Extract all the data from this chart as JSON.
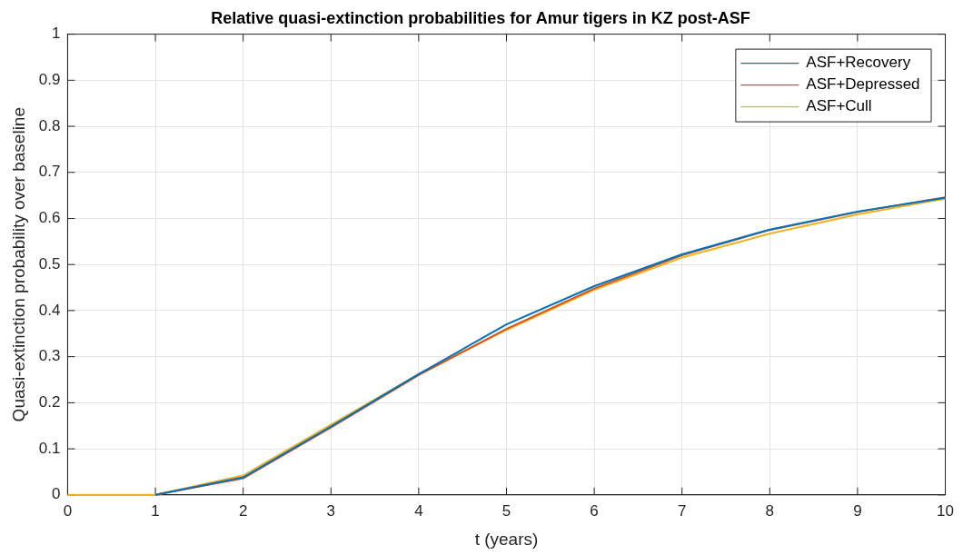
{
  "chart_data": {
    "type": "line",
    "title": "Relative quasi-extinction probabilities for Amur tigers in KZ post-ASF",
    "xlabel": "t (years)",
    "ylabel": "Quasi-extinction probability over baseline",
    "x": [
      0,
      1,
      2,
      3,
      4,
      5,
      6,
      7,
      8,
      9,
      10
    ],
    "series": [
      {
        "name": "ASF+Recovery",
        "color": "#0072bd",
        "values": [
          null,
          0,
          0.038,
          0.148,
          0.262,
          0.37,
          0.453,
          0.522,
          0.576,
          0.615,
          0.645
        ]
      },
      {
        "name": "ASF+Depressed",
        "color": "#d95319",
        "values": [
          null,
          0,
          0.036,
          0.146,
          0.26,
          0.36,
          0.448,
          0.52,
          0.575,
          0.614,
          0.646
        ]
      },
      {
        "name": "ASF+Cull",
        "color": "#edb120",
        "values": [
          0,
          0,
          0.042,
          0.152,
          0.262,
          0.358,
          0.445,
          0.515,
          0.567,
          0.609,
          0.643
        ]
      }
    ],
    "xlim": [
      0,
      10
    ],
    "xticks": [
      0,
      1,
      2,
      3,
      4,
      5,
      6,
      7,
      8,
      9,
      10
    ],
    "ylim": [
      0,
      1
    ],
    "yticks": [
      0,
      0.1,
      0.2,
      0.3,
      0.4,
      0.5,
      0.6,
      0.7,
      0.8,
      0.9,
      1
    ],
    "grid": true,
    "legend": "top right",
    "marker": "none",
    "line_style": "solid"
  }
}
